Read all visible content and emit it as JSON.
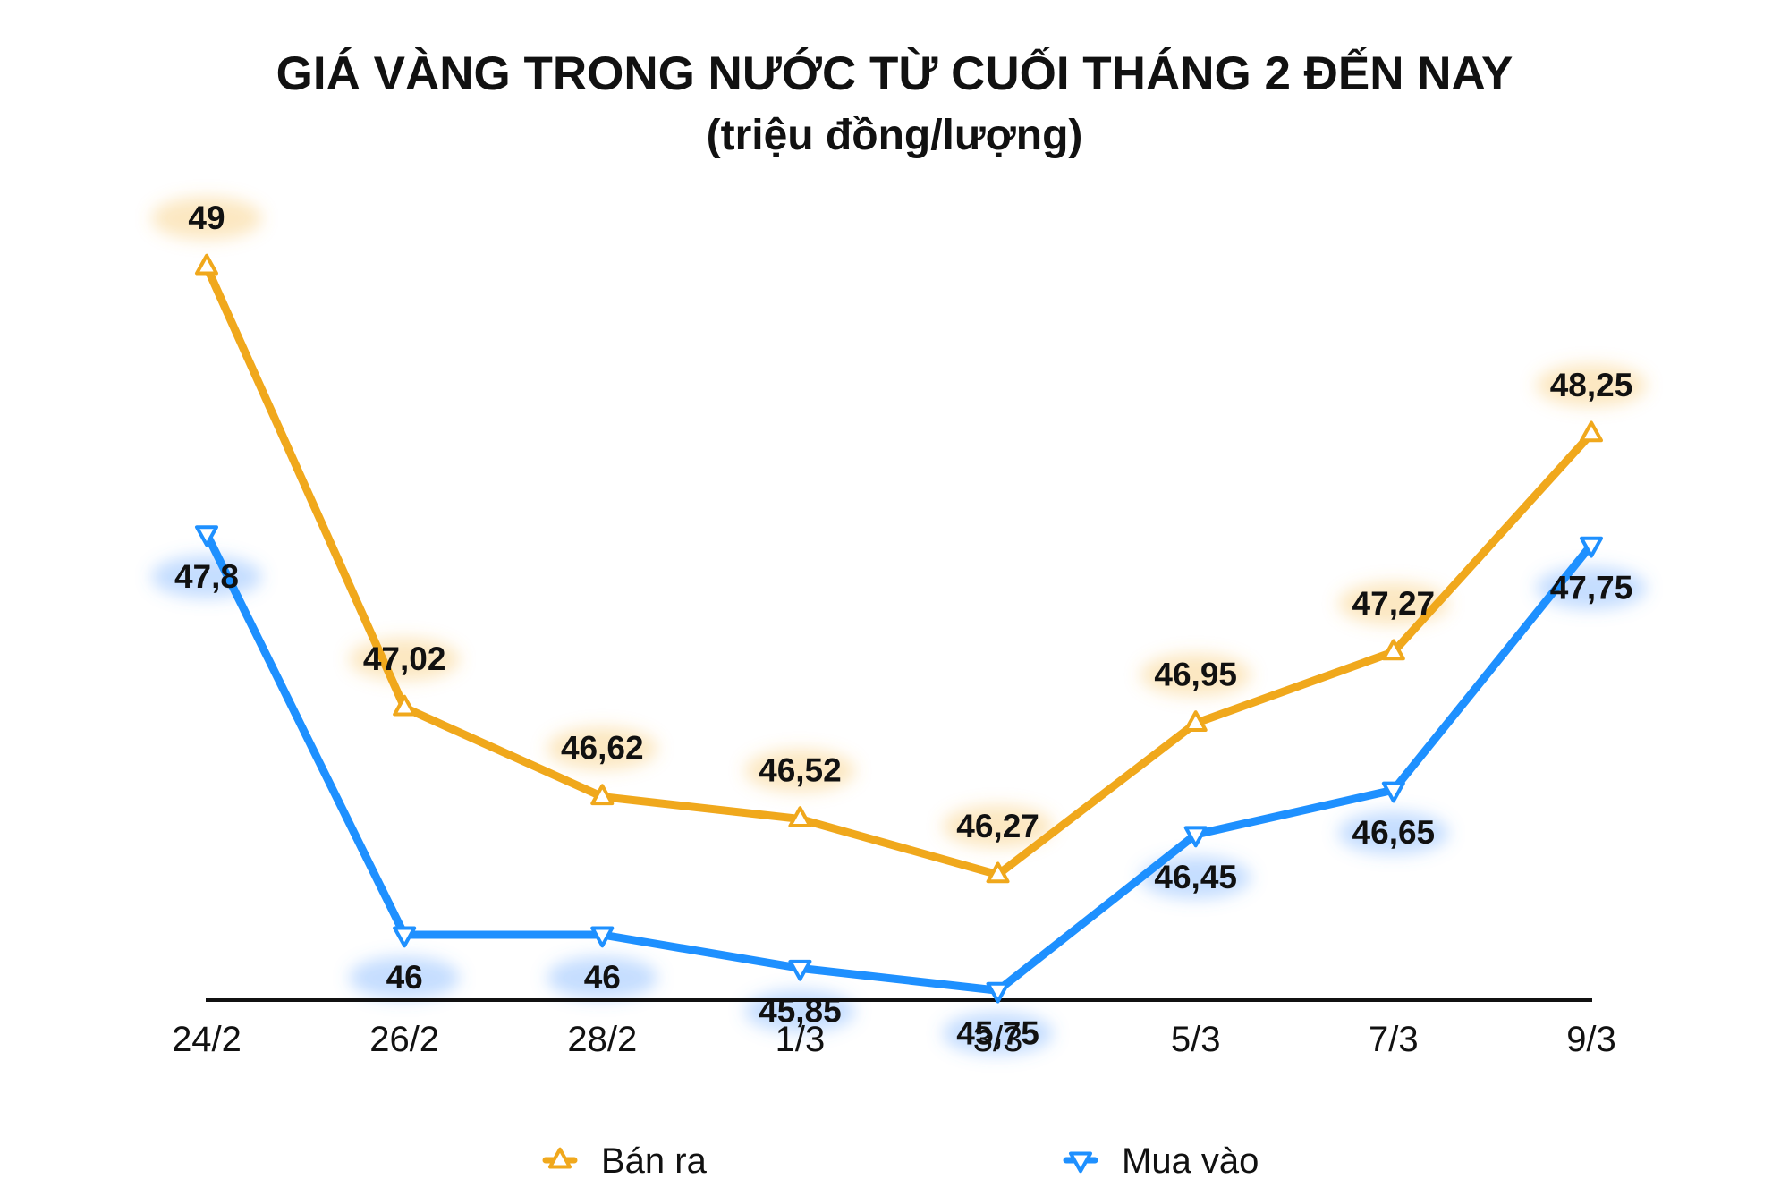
{
  "chart_data": {
    "type": "line",
    "title": "GIÁ VÀNG TRONG NƯỚC TỪ CUỐI THÁNG 2 ĐẾN NAY",
    "subtitle": "(triệu đồng/lượng)",
    "categories": [
      "24/2",
      "26/2",
      "28/2",
      "1/3",
      "3/3",
      "5/3",
      "7/3",
      "9/3"
    ],
    "series": [
      {
        "name": "Bán ra",
        "color": "#F0A81C",
        "marker": "triangle-up",
        "values": [
          49,
          47.02,
          46.62,
          46.52,
          46.27,
          46.95,
          47.27,
          48.25
        ],
        "labels": [
          "49",
          "47,02",
          "46,62",
          "46,52",
          "46,27",
          "46,95",
          "47,27",
          "48,25"
        ]
      },
      {
        "name": "Mua vào",
        "color": "#1E90FF",
        "marker": "triangle-down",
        "values": [
          47.8,
          46,
          46,
          45.85,
          45.75,
          46.45,
          46.65,
          47.75
        ],
        "labels": [
          "47,8",
          "46",
          "46",
          "45,85",
          "45,75",
          "46,45",
          "46,65",
          "47,75"
        ]
      }
    ],
    "ylim": [
      44.3,
      49.3
    ],
    "grid": false,
    "legend": "bottom"
  }
}
